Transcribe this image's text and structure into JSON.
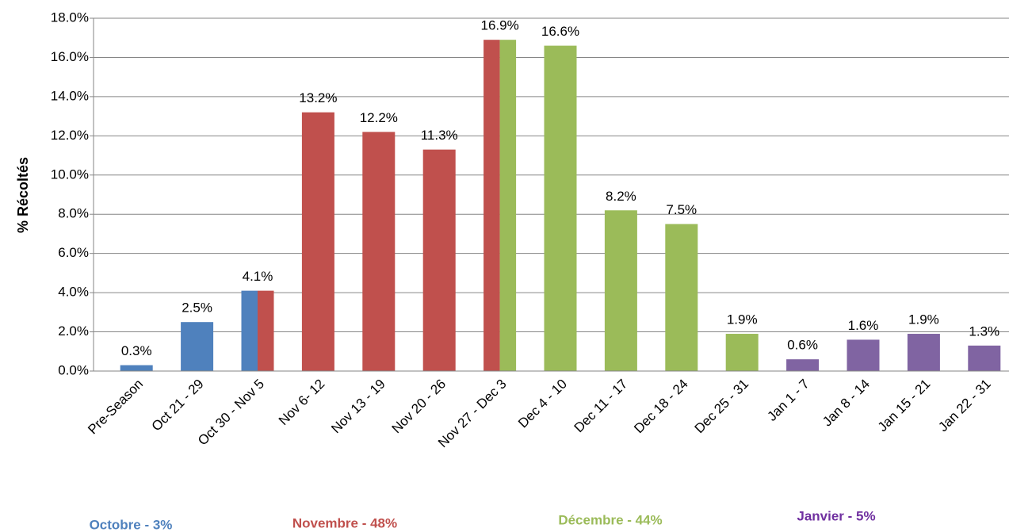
{
  "chart_data": {
    "type": "bar",
    "y_label": "% Récoltés",
    "categories": [
      "Pre-Season",
      "Oct 21 - 29",
      "Oct 30 - Nov 5",
      "Nov 6- 12",
      "Nov 13 - 19",
      "Nov 20 - 26",
      "Nov 27 - Dec 3",
      "Dec 4 - 10",
      "Dec 11 - 17",
      "Dec 18 - 24",
      "Dec 25 - 31",
      "Jan 1 - 7",
      "Jan 8 - 14",
      "Jan 15 - 21",
      "Jan 22 - 31"
    ],
    "values": [
      0.3,
      2.5,
      4.1,
      13.2,
      12.2,
      11.3,
      16.9,
      16.6,
      8.2,
      7.5,
      1.9,
      0.6,
      1.6,
      1.9,
      1.3
    ],
    "value_labels": [
      "0.3%",
      "2.5%",
      "4.1%",
      "13.2%",
      "12.2%",
      "11.3%",
      "16.9%",
      "16.6%",
      "8.2%",
      "7.5%",
      "1.9%",
      "0.6%",
      "1.6%",
      "1.9%",
      "1.3%"
    ],
    "bar_colors": [
      [
        "#4f81bd"
      ],
      [
        "#4f81bd"
      ],
      [
        "#4f81bd",
        "#c0504d"
      ],
      [
        "#c0504d"
      ],
      [
        "#c0504d"
      ],
      [
        "#c0504d"
      ],
      [
        "#c0504d",
        "#9bbb59"
      ],
      [
        "#9bbb59"
      ],
      [
        "#9bbb59"
      ],
      [
        "#9bbb59"
      ],
      [
        "#9bbb59"
      ],
      [
        "#8064a2"
      ],
      [
        "#8064a2"
      ],
      [
        "#8064a2"
      ],
      [
        "#8064a2"
      ]
    ],
    "ylim": [
      0,
      18
    ],
    "yticks": [
      {
        "value": 0,
        "label": "0.0%"
      },
      {
        "value": 2,
        "label": "2.0%"
      },
      {
        "value": 4,
        "label": "4.0%"
      },
      {
        "value": 6,
        "label": "6.0%"
      },
      {
        "value": 8,
        "label": "8.0%"
      },
      {
        "value": 10,
        "label": "10.0%"
      },
      {
        "value": 12,
        "label": "12.0%"
      },
      {
        "value": 14,
        "label": "14.0%"
      },
      {
        "value": 16,
        "label": "16.0%"
      },
      {
        "value": 18,
        "label": "18.0%"
      }
    ],
    "grid": true,
    "annotations": [
      {
        "text": "Octobre - 3%",
        "color": "#4f81bd"
      },
      {
        "text": "Novembre - 48%",
        "color": "#c0504d"
      },
      {
        "text": "Décembre - 44%",
        "color": "#9bbb59"
      },
      {
        "text": "Janvier - 5%",
        "color": "#7030a0"
      }
    ]
  }
}
